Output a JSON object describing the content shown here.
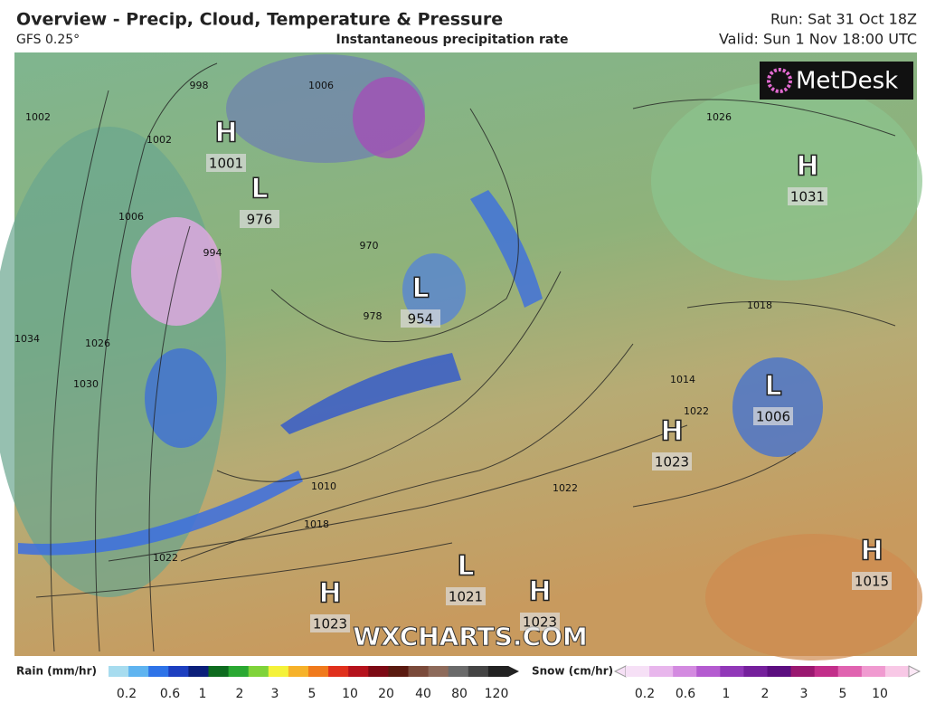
{
  "header": {
    "title": "Overview - Precip, Cloud, Temperature & Pressure",
    "model": "GFS 0.25°",
    "subtitle": "Instantaneous precipitation rate",
    "run": "Run: Sat 31 Oct 18Z",
    "valid": "Valid: Sun 1 Nov 18:00 UTC"
  },
  "logo": "MetDesk",
  "watermark": "WXCHARTS.COM",
  "centers": [
    {
      "type": "H",
      "pressure": "1001"
    },
    {
      "type": "L",
      "pressure": "976"
    },
    {
      "type": "L",
      "pressure": "954"
    },
    {
      "type": "H",
      "pressure": "1031"
    },
    {
      "type": "L",
      "pressure": "1006"
    },
    {
      "type": "H",
      "pressure": "1023"
    },
    {
      "type": "H",
      "pressure": "1015"
    },
    {
      "type": "L",
      "pressure": "1021"
    },
    {
      "type": "H",
      "pressure": "1023"
    },
    {
      "type": "H",
      "pressure": "1023"
    }
  ],
  "isobar_labels": [
    "1002",
    "998",
    "1006",
    "1006",
    "1002",
    "994",
    "970",
    "978",
    "1026",
    "1030",
    "1034",
    "1010",
    "1018",
    "1022",
    "1022",
    "1018",
    "1014",
    "1022",
    "1026"
  ],
  "legend": {
    "rain": {
      "label": "Rain (mm/hr)",
      "ticks": [
        "0.2",
        "0.6",
        "1",
        "2",
        "3",
        "5",
        "10",
        "20",
        "40",
        "80",
        "120"
      ]
    },
    "snow": {
      "label": "Snow (cm/hr)",
      "ticks": [
        "0.2",
        "0.6",
        "1",
        "2",
        "3",
        "5",
        "10"
      ]
    }
  }
}
